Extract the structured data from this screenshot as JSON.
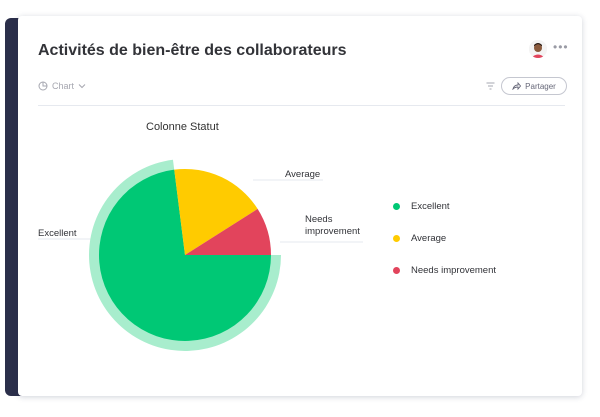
{
  "header": {
    "title": "Activités de bien-être des collaborateurs",
    "more_label": "•••"
  },
  "toolbar": {
    "chart_type_label": "Chart",
    "share_label": "Partager"
  },
  "colors": {
    "sidebar": "#2b2f4a",
    "excellent": "#00c875",
    "average": "#ffcb00",
    "needs_improvement": "#e2445c",
    "highlight_ring": "#a8edcd"
  },
  "chart_data": {
    "type": "pie",
    "title": "Colonne Statut",
    "slices": [
      {
        "label": "Excellent",
        "value": 73,
        "color": "#00c875"
      },
      {
        "label": "Average",
        "value": 18,
        "color": "#ffcb00"
      },
      {
        "label": "Needs improvement",
        "value": 9,
        "color": "#e2445c"
      }
    ],
    "highlighted": "Excellent",
    "legend_position": "right",
    "slice_labels": [
      "Excellent",
      "Average",
      "Needs\nimprovement"
    ]
  }
}
